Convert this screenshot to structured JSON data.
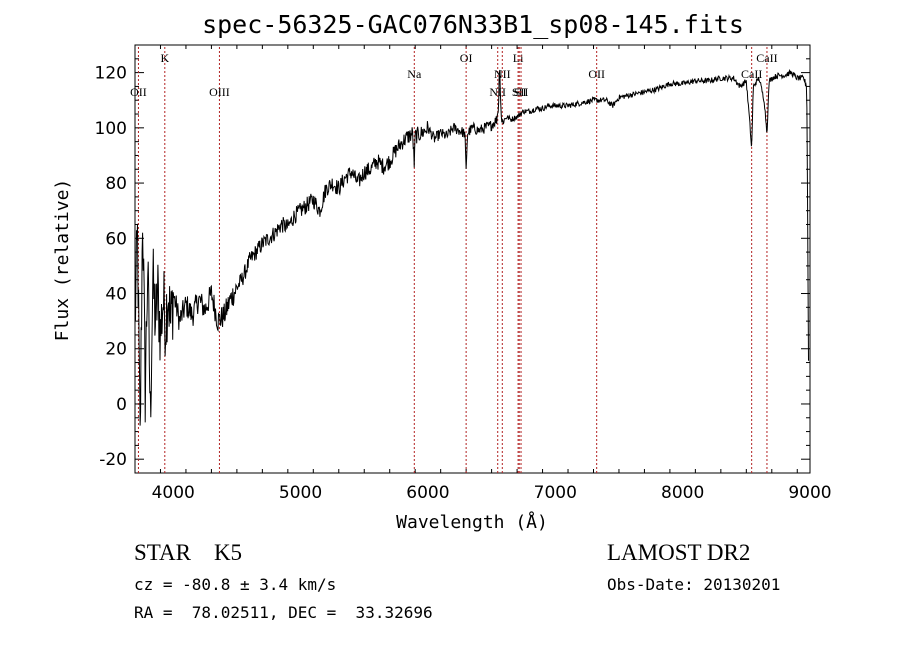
{
  "chart_data": {
    "type": "line",
    "title": "spec-56325-GAC076N33B1_sp08-145.fits",
    "xlabel": "Wavelength (Å)",
    "ylabel": "Flux (relative)",
    "xlim": [
      3700,
      9000
    ],
    "ylim": [
      -25,
      130
    ],
    "xticks": [
      4000,
      5000,
      6000,
      7000,
      8000,
      9000
    ],
    "yticks": [
      -20,
      0,
      20,
      40,
      60,
      80,
      100,
      120
    ],
    "grid": false,
    "series": [
      {
        "x": [
          3700,
          3720,
          3740,
          3760,
          3780,
          3800,
          3820,
          3840,
          3860,
          3880,
          3900,
          3920,
          3940,
          3960,
          3980,
          4000,
          4050,
          4100,
          4150,
          4200,
          4250,
          4300,
          4350,
          4400,
          4450,
          4500,
          4550,
          4600,
          4650,
          4700,
          4750,
          4800,
          4850,
          4900,
          4950,
          5000,
          5050,
          5100,
          5150,
          5200,
          5250,
          5300,
          5350,
          5400,
          5450,
          5500,
          5550,
          5600,
          5650,
          5700,
          5750,
          5800,
          5850,
          5880,
          5893,
          5900,
          5950,
          6000,
          6050,
          6100,
          6150,
          6200,
          6250,
          6290,
          6300,
          6310,
          6350,
          6400,
          6450,
          6500,
          6540,
          6555,
          6563,
          6570,
          6580,
          6600,
          6620,
          6650,
          6700,
          6750,
          6800,
          6850,
          6900,
          6950,
          7000,
          7100,
          7200,
          7300,
          7400,
          7450,
          7500,
          7600,
          7700,
          7800,
          7900,
          8000,
          8100,
          8200,
          8300,
          8400,
          8450,
          8500,
          8530,
          8542,
          8555,
          8600,
          8640,
          8662,
          8680,
          8700,
          8750,
          8800,
          8850,
          8900,
          8950,
          8975,
          8990
        ],
        "y": [
          30,
          60,
          -15,
          70,
          5,
          50,
          -5,
          45,
          30,
          40,
          25,
          38,
          30,
          42,
          28,
          40,
          30,
          36,
          32,
          38,
          34,
          40,
          30,
          32,
          38,
          42,
          46,
          52,
          55,
          58,
          60,
          62,
          65,
          64,
          68,
          70,
          72,
          74,
          70,
          78,
          80,
          78,
          82,
          84,
          80,
          84,
          85,
          88,
          86,
          88,
          92,
          95,
          97,
          98,
          86,
          97,
          98,
          100,
          96,
          98,
          97,
          100,
          99,
          98,
          84,
          98,
          100,
          99,
          100,
          101,
          103,
          108,
          125,
          110,
          102,
          103,
          104,
          103,
          104,
          106,
          106,
          107,
          107,
          108,
          108,
          108,
          109,
          110,
          110,
          108,
          111,
          112,
          113,
          114,
          116,
          116,
          117,
          117,
          118,
          118,
          115,
          117,
          100,
          92,
          115,
          118,
          110,
          98,
          117,
          118,
          119,
          119,
          120,
          118,
          118,
          115,
          0
        ]
      }
    ],
    "lines": [
      {
        "label": "OII",
        "x": 3727,
        "row": "low"
      },
      {
        "label": "K",
        "x": 3934,
        "row": "high"
      },
      {
        "label": "OIII",
        "x": 4363,
        "row": "low"
      },
      {
        "label": "Na",
        "x": 5893,
        "row": "mid"
      },
      {
        "label": "OI",
        "x": 6300,
        "row": "high"
      },
      {
        "label": "NII",
        "x": 6548,
        "row": "low"
      },
      {
        "label": "NII",
        "x": 6584,
        "row": "mid"
      },
      {
        "label": "Li",
        "x": 6708,
        "row": "high"
      },
      {
        "label": "SII",
        "x": 6717,
        "row": "low"
      },
      {
        "label": "SII",
        "x": 6731,
        "row": "low"
      },
      {
        "label": "OII",
        "x": 7325,
        "row": "mid"
      },
      {
        "label": "CaII",
        "x": 8542,
        "row": "mid"
      },
      {
        "label": "CaII",
        "x": 8662,
        "row": "high"
      }
    ]
  },
  "info": {
    "class": "STAR    K5",
    "survey": "LAMOST DR2",
    "cz": "cz = -80.8 ± 3.4 km/s",
    "obs_date": "Obs-Date: 20130201",
    "radec": "RA =  78.02511, DEC =  33.32696"
  }
}
